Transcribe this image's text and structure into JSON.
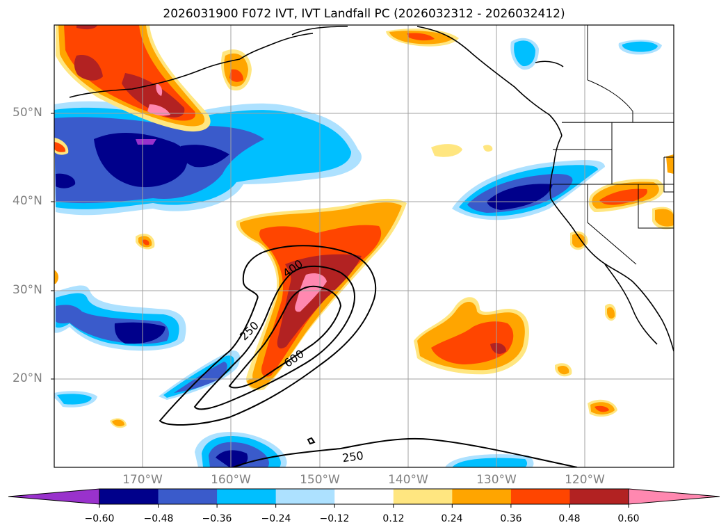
{
  "title": "2026031900 F072 IVT, IVT Landfall PC (2026032312 - 2026032412)",
  "lat_labels": [
    "50°N",
    "40°N",
    "30°N",
    "20°N"
  ],
  "lon_labels": [
    "170°W",
    "160°W",
    "150°W",
    "140°W",
    "130°W",
    "120°W"
  ],
  "contour_labels": [
    "400",
    "250",
    "600",
    "250"
  ],
  "colorbar": {
    "tick_labels": [
      "−0.60",
      "−0.48",
      "−0.36",
      "−0.24",
      "−0.12",
      "0.12",
      "0.24",
      "0.36",
      "0.48",
      "0.60"
    ],
    "colors": [
      "#9932CC",
      "#00008B",
      "#3A5BCB",
      "#00BFFF",
      "#ADE1FF",
      "#FFFFFF",
      "#FFE680",
      "#FFA500",
      "#FF4500",
      "#B22222",
      "#FF88B0"
    ]
  },
  "map": {
    "lon_range": [
      "180°W",
      "110°W"
    ],
    "lat_range": [
      "10°N",
      "60°N"
    ],
    "ivt_contour_levels": [
      250,
      400,
      600
    ]
  }
}
